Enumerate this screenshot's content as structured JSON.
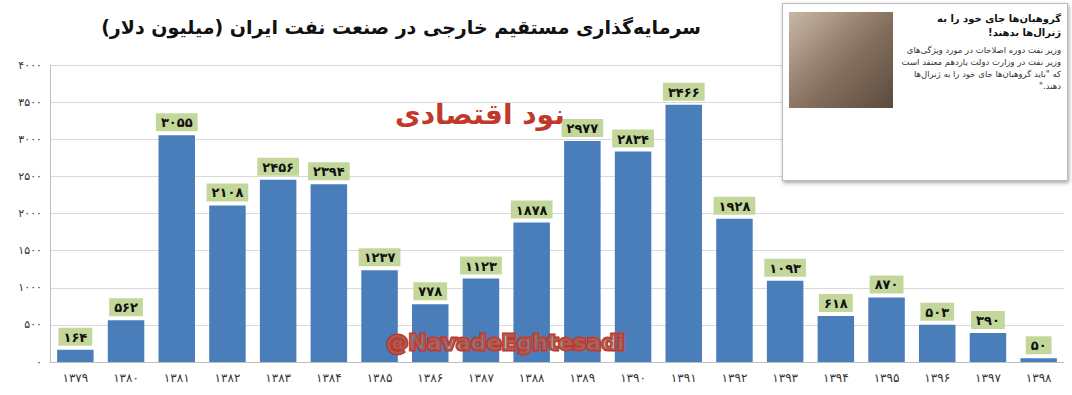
{
  "chart_data": {
    "type": "bar",
    "title": "سرمایه‌گذاری مستقیم خارجی در صنعت نفت ایران (میلیون دلار)",
    "categories": [
      "۱۳۷۹",
      "۱۳۸۰",
      "۱۳۸۱",
      "۱۳۸۲",
      "۱۳۸۳",
      "۱۳۸۴",
      "۱۳۸۵",
      "۱۳۸۶",
      "۱۳۸۷",
      "۱۳۸۸",
      "۱۳۸۹",
      "۱۳۹۰",
      "۱۳۹۱",
      "۱۳۹۲",
      "۱۳۹۳",
      "۱۳۹۴",
      "۱۳۹۵",
      "۱۳۹۶",
      "۱۳۹۷",
      "۱۳۹۸"
    ],
    "values": [
      164,
      562,
      3055,
      2108,
      2456,
      2394,
      1237,
      778,
      1123,
      1878,
      2977,
      2834,
      3466,
      1928,
      1093,
      618,
      870,
      503,
      390,
      50
    ],
    "value_labels": [
      "۱۶۴",
      "۵۶۲",
      "۳۰۵۵",
      "۲۱۰۸",
      "۲۴۵۶",
      "۲۳۹۴",
      "۱۲۳۷",
      "۷۷۸",
      "۱۱۲۳",
      "۱۸۷۸",
      "۲۹۷۷",
      "۲۸۳۴",
      "۳۴۶۶",
      "۱۹۲۸",
      "۱۰۹۳",
      "۶۱۸",
      "۸۷۰",
      "۵۰۳",
      "۳۹۰",
      "۵۰"
    ],
    "color": "#4a7ebb",
    "data_labels": true,
    "ylim": [
      0,
      4000
    ],
    "yticks": [
      {
        "value": 0,
        "label": "۰"
      },
      {
        "value": 500,
        "label": "۵۰۰"
      },
      {
        "value": 1000,
        "label": "۱۰۰۰"
      },
      {
        "value": 1500,
        "label": "۱۵۰۰"
      },
      {
        "value": 2000,
        "label": "۲۰۰۰"
      },
      {
        "value": 2500,
        "label": "۲۵۰۰"
      },
      {
        "value": 3000,
        "label": "۳۰۰۰"
      },
      {
        "value": 3500,
        "label": "۳۵۰۰"
      },
      {
        "value": 4000,
        "label": "۴۰۰۰"
      }
    ],
    "grid": true,
    "annotations": {
      "inset_headline": "گروهبان‌ها جای خود را به ژنرال‌ها بدهند!",
      "inset_text": "وزیر نفت دوره اصلاحات در مورد ویژگی‌های وزیر نفت در وزارت دولت یازدهم معتقد است که \"باید گروهبان‌ها جای خود را به ژنرال‌ها دهند.\"",
      "watermark": "@NavadeEghtesadi",
      "logo_text": "نود اقتصادی"
    }
  }
}
